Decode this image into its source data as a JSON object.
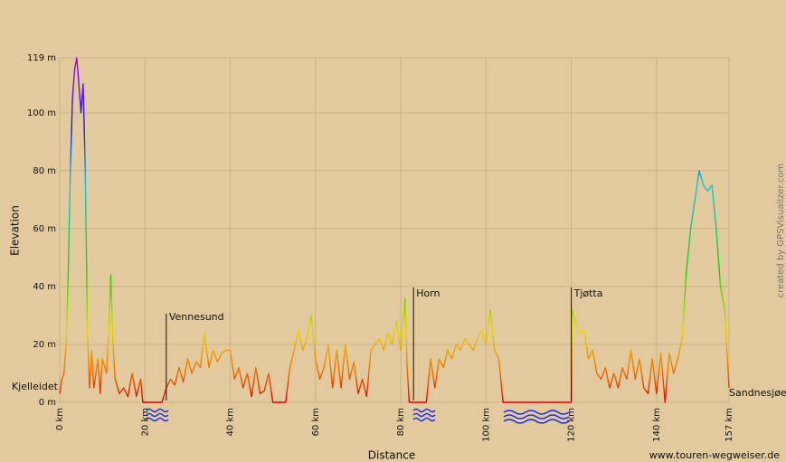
{
  "chart_data": {
    "type": "line",
    "x_label": "Distance",
    "y_label": "Elevation",
    "credit": "www.touren-wegweiser.de",
    "side_credit": "created by GPSVisualizer.com",
    "xlim": [
      0,
      157
    ],
    "ylim": [
      0,
      119
    ],
    "xticks": [
      {
        "value": 0,
        "label": "0 km"
      },
      {
        "value": 20,
        "label": "20 km"
      },
      {
        "value": 40,
        "label": "40 km"
      },
      {
        "value": 60,
        "label": "60 km"
      },
      {
        "value": 80,
        "label": "80 km"
      },
      {
        "value": 100,
        "label": "100 km"
      },
      {
        "value": 120,
        "label": "120 km"
      },
      {
        "value": 140,
        "label": "140 km"
      },
      {
        "value": 157,
        "label": "157 km"
      }
    ],
    "yticks": [
      {
        "value": 0,
        "label": "0 m"
      },
      {
        "value": 20,
        "label": "20 m"
      },
      {
        "value": 40,
        "label": "40 m"
      },
      {
        "value": 60,
        "label": "60 m"
      },
      {
        "value": 80,
        "label": "80 m"
      },
      {
        "value": 100,
        "label": "100 m"
      },
      {
        "value": 119,
        "label": "119 m"
      }
    ],
    "grid": true,
    "colorscale": [
      {
        "value": 0,
        "color": "#e00000"
      },
      {
        "value": 10,
        "color": "#f06a00"
      },
      {
        "value": 25,
        "color": "#e8d800"
      },
      {
        "value": 45,
        "color": "#20d000"
      },
      {
        "value": 75,
        "color": "#10c8e0"
      },
      {
        "value": 95,
        "color": "#1020e0"
      },
      {
        "value": 119,
        "color": "#b000e0"
      }
    ],
    "annotations": [
      {
        "text": "Kjelleidet",
        "x": 0
      },
      {
        "text": "Vennesund",
        "x": 25
      },
      {
        "text": "Horn",
        "x": 83
      },
      {
        "text": "Tjøtta",
        "x": 120
      },
      {
        "text": "Sandnesjøen",
        "x": 157
      }
    ],
    "series": [
      {
        "name": "Elevation",
        "x": [
          0,
          0.5,
          1,
          1.5,
          2,
          2.5,
          3,
          3.5,
          4,
          4.5,
          5,
          5.5,
          6,
          6.5,
          7,
          7.5,
          8,
          9,
          9.5,
          10,
          11,
          11.5,
          12,
          12.5,
          13,
          14,
          15,
          16,
          17,
          18,
          19,
          19.5,
          20,
          24,
          25,
          26,
          27,
          28,
          29,
          30,
          31,
          32,
          33,
          34,
          35,
          36,
          37,
          38,
          39,
          40,
          41,
          42,
          43,
          44,
          45,
          46,
          47,
          48,
          49,
          50,
          53,
          54,
          55,
          56,
          57,
          58,
          59,
          60,
          61,
          62,
          63,
          64,
          65,
          66,
          67,
          68,
          69,
          70,
          71,
          72,
          73,
          74,
          75,
          76,
          77,
          78,
          79,
          80,
          81,
          81.5,
          82,
          86,
          87,
          88,
          89,
          90,
          91,
          92,
          93,
          94,
          95,
          96,
          97,
          98,
          99,
          100,
          101,
          102,
          103,
          104,
          120,
          120.2,
          121,
          122,
          123,
          124,
          125,
          126,
          127,
          128,
          129,
          130,
          131,
          132,
          133,
          134,
          135,
          136,
          137,
          138,
          139,
          140,
          141,
          142,
          143,
          144,
          145,
          146,
          147,
          148,
          149,
          150,
          151,
          152,
          153,
          154,
          155,
          156,
          157
        ],
        "values": [
          3,
          8,
          10,
          20,
          45,
          80,
          105,
          115,
          119,
          110,
          100,
          110,
          80,
          25,
          5,
          18,
          5,
          15,
          3,
          15,
          10,
          25,
          44,
          20,
          8,
          3,
          5,
          2,
          10,
          2,
          8,
          0,
          0,
          0,
          5,
          8,
          6,
          12,
          7,
          15,
          10,
          14,
          12,
          24,
          12,
          18,
          14,
          17,
          18,
          18,
          8,
          12,
          5,
          10,
          2,
          12,
          3,
          4,
          10,
          0,
          0,
          12,
          18,
          25,
          18,
          22,
          30,
          15,
          8,
          12,
          20,
          5,
          18,
          5,
          20,
          8,
          14,
          3,
          8,
          2,
          18,
          20,
          22,
          18,
          24,
          20,
          28,
          18,
          36,
          12,
          0,
          0,
          15,
          5,
          15,
          12,
          18,
          15,
          20,
          18,
          22,
          20,
          18,
          22,
          25,
          20,
          32,
          18,
          15,
          0,
          0,
          32,
          28,
          24,
          25,
          15,
          18,
          10,
          8,
          12,
          5,
          10,
          5,
          12,
          8,
          18,
          8,
          15,
          5,
          3,
          15,
          3,
          17,
          0,
          17,
          10,
          15,
          22,
          45,
          60,
          70,
          80,
          75,
          73,
          75,
          60,
          40,
          32,
          5
        ]
      }
    ]
  }
}
